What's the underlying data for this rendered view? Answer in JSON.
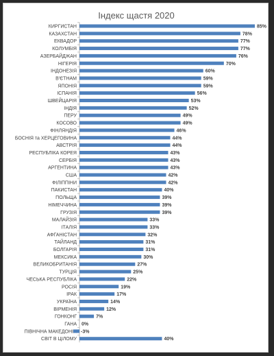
{
  "colors": {
    "bar": "#4f81bd",
    "axis": "#a6a6a6",
    "text": "#404040",
    "title": "#595959"
  },
  "chart_data": {
    "type": "bar",
    "orientation": "horizontal",
    "title": "Індекс щастя 2020",
    "xlabel": "",
    "ylabel": "",
    "xlim": [
      0,
      85
    ],
    "grid": false,
    "legend": "none",
    "categories": [
      "КИРГИСТАН",
      "КАЗАХСТАН",
      "ЕКВАДОР",
      "КОЛУМБІЯ",
      "АЗЕРБАЙДЖАН",
      "НІГЕРІЯ",
      "ІНДОНЕЗІЯ",
      "В'ЄТНАМ",
      "ЯПОНІЯ",
      "ІСПАНІЯ",
      "ШВЕЙЦАРІЯ",
      "ІНДІЯ",
      "ПЕРУ",
      "КОСОВО",
      "ФІНЛЯНДІЯ",
      "БОСНІЯ та ХЕРЦЕГОВИНА",
      "АВСТРІЯ",
      "РЕСПУБЛІКА КОРЕЯ",
      "СЕРБІЯ",
      "АРГЕНТИНА",
      "США",
      "ФІЛІППІНИ",
      "ПАКИСТАН",
      "ПОЛЬЩА",
      "НІМЕЧЧИНА",
      "ГРУЗІЯ",
      "МАЛАЙЗІЯ",
      "ІТАЛІЯ",
      "АФГАНІСТАН",
      "ТАЙЛАНД",
      "БОЛГАРІЯ",
      "МЕКСИКА",
      "ВЕЛИКОБРИТАНІЯ",
      "ТУРЦІЯ",
      "ЧЕСЬКА РЕСПУБЛІКА",
      "РОСІЯ",
      "ІРАК",
      "УКРАЇНА",
      "ВІРМЕНІЯ",
      "ГОНКОНГ",
      "ГАНА",
      "ПІВНІЧНА МАКЕДОНІЯ",
      "СВІТ В ЦІЛОМУ"
    ],
    "values": [
      85,
      78,
      77,
      77,
      76,
      70,
      60,
      59,
      59,
      56,
      53,
      52,
      49,
      49,
      46,
      44,
      44,
      43,
      43,
      43,
      42,
      42,
      40,
      39,
      39,
      39,
      33,
      33,
      32,
      31,
      31,
      30,
      27,
      25,
      22,
      19,
      17,
      14,
      12,
      7,
      0,
      -3,
      40
    ],
    "value_labels": [
      "85%",
      "78%",
      "77%",
      "77%",
      "76%",
      "70%",
      "60%",
      "59%",
      "59%",
      "56%",
      "53%",
      "52%",
      "49%",
      "49%",
      "46%",
      "44%",
      "44%",
      "43%",
      "43%",
      "43%",
      "42%",
      "42%",
      "40%",
      "39%",
      "39%",
      "39%",
      "33%",
      "33%",
      "32%",
      "31%",
      "31%",
      "30%",
      "27%",
      "25%",
      "22%",
      "19%",
      "17%",
      "14%",
      "12%",
      "7%",
      "0%",
      "-3%",
      "40%"
    ]
  }
}
